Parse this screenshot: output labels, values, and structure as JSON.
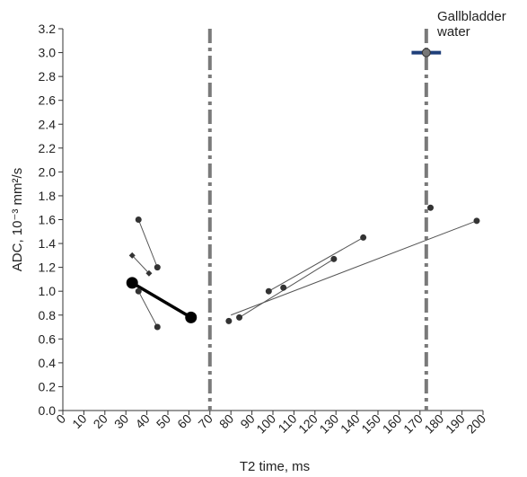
{
  "chart_data": {
    "type": "scatter",
    "xlabel": "T2 time, ms",
    "ylabel": "ADC, 10⁻³ mm²/s",
    "xlim": [
      0,
      200
    ],
    "ylim": [
      0,
      3.2
    ],
    "x_ticks": [
      "0",
      "10",
      "20",
      "30",
      "40",
      "50",
      "60",
      "70",
      "80",
      "90",
      "100",
      "110",
      "120",
      "130",
      "140",
      "150",
      "160",
      "170",
      "180",
      "190",
      "200"
    ],
    "y_ticks": [
      "0.0",
      "0.2",
      "0.4",
      "0.6",
      "0.8",
      "1.0",
      "1.2",
      "1.4",
      "1.6",
      "1.8",
      "2.0",
      "2.2",
      "2.4",
      "2.6",
      "2.8",
      "3.0",
      "3.2"
    ],
    "grid": false,
    "threshold_lines_x": [
      70,
      173
    ],
    "annotation": "Gallbladder\nwater",
    "lines": [
      {
        "points": [
          [
            36,
            1.6
          ],
          [
            45,
            1.2
          ]
        ],
        "width": "thin"
      },
      {
        "points": [
          [
            33,
            1.3
          ],
          [
            41,
            1.15
          ]
        ],
        "width": "thin",
        "marker": "diamond"
      },
      {
        "points": [
          [
            36,
            1.0
          ],
          [
            45,
            0.7
          ]
        ],
        "width": "thin"
      },
      {
        "points": [
          [
            33,
            1.07
          ],
          [
            61,
            0.78
          ]
        ],
        "width": "thick",
        "marker": "large"
      },
      {
        "points": [
          [
            80,
            0.8
          ],
          [
            197,
            1.59
          ]
        ],
        "width": "thin"
      },
      {
        "points": [
          [
            84,
            0.78
          ],
          [
            129,
            1.27
          ]
        ],
        "width": "thin"
      },
      {
        "points": [
          [
            98,
            1.0
          ],
          [
            143,
            1.45
          ]
        ],
        "width": "thin"
      }
    ],
    "points": [
      {
        "x": 36,
        "y": 1.6
      },
      {
        "x": 45,
        "y": 1.2
      },
      {
        "x": 33,
        "y": 1.3,
        "marker": "diamond"
      },
      {
        "x": 41,
        "y": 1.15,
        "marker": "diamond"
      },
      {
        "x": 36,
        "y": 1.0
      },
      {
        "x": 45,
        "y": 0.7
      },
      {
        "x": 33,
        "y": 1.07,
        "marker": "large"
      },
      {
        "x": 61,
        "y": 0.78,
        "marker": "large"
      },
      {
        "x": 79,
        "y": 0.75
      },
      {
        "x": 84,
        "y": 0.78
      },
      {
        "x": 98,
        "y": 1.0
      },
      {
        "x": 105,
        "y": 1.03
      },
      {
        "x": 129,
        "y": 1.27
      },
      {
        "x": 143,
        "y": 1.45
      },
      {
        "x": 175,
        "y": 1.7
      },
      {
        "x": 197,
        "y": 1.59
      }
    ],
    "reference_point": {
      "x": 173,
      "y": 3.0,
      "range": [
        166,
        180
      ],
      "color": "#1f3f7a"
    }
  }
}
